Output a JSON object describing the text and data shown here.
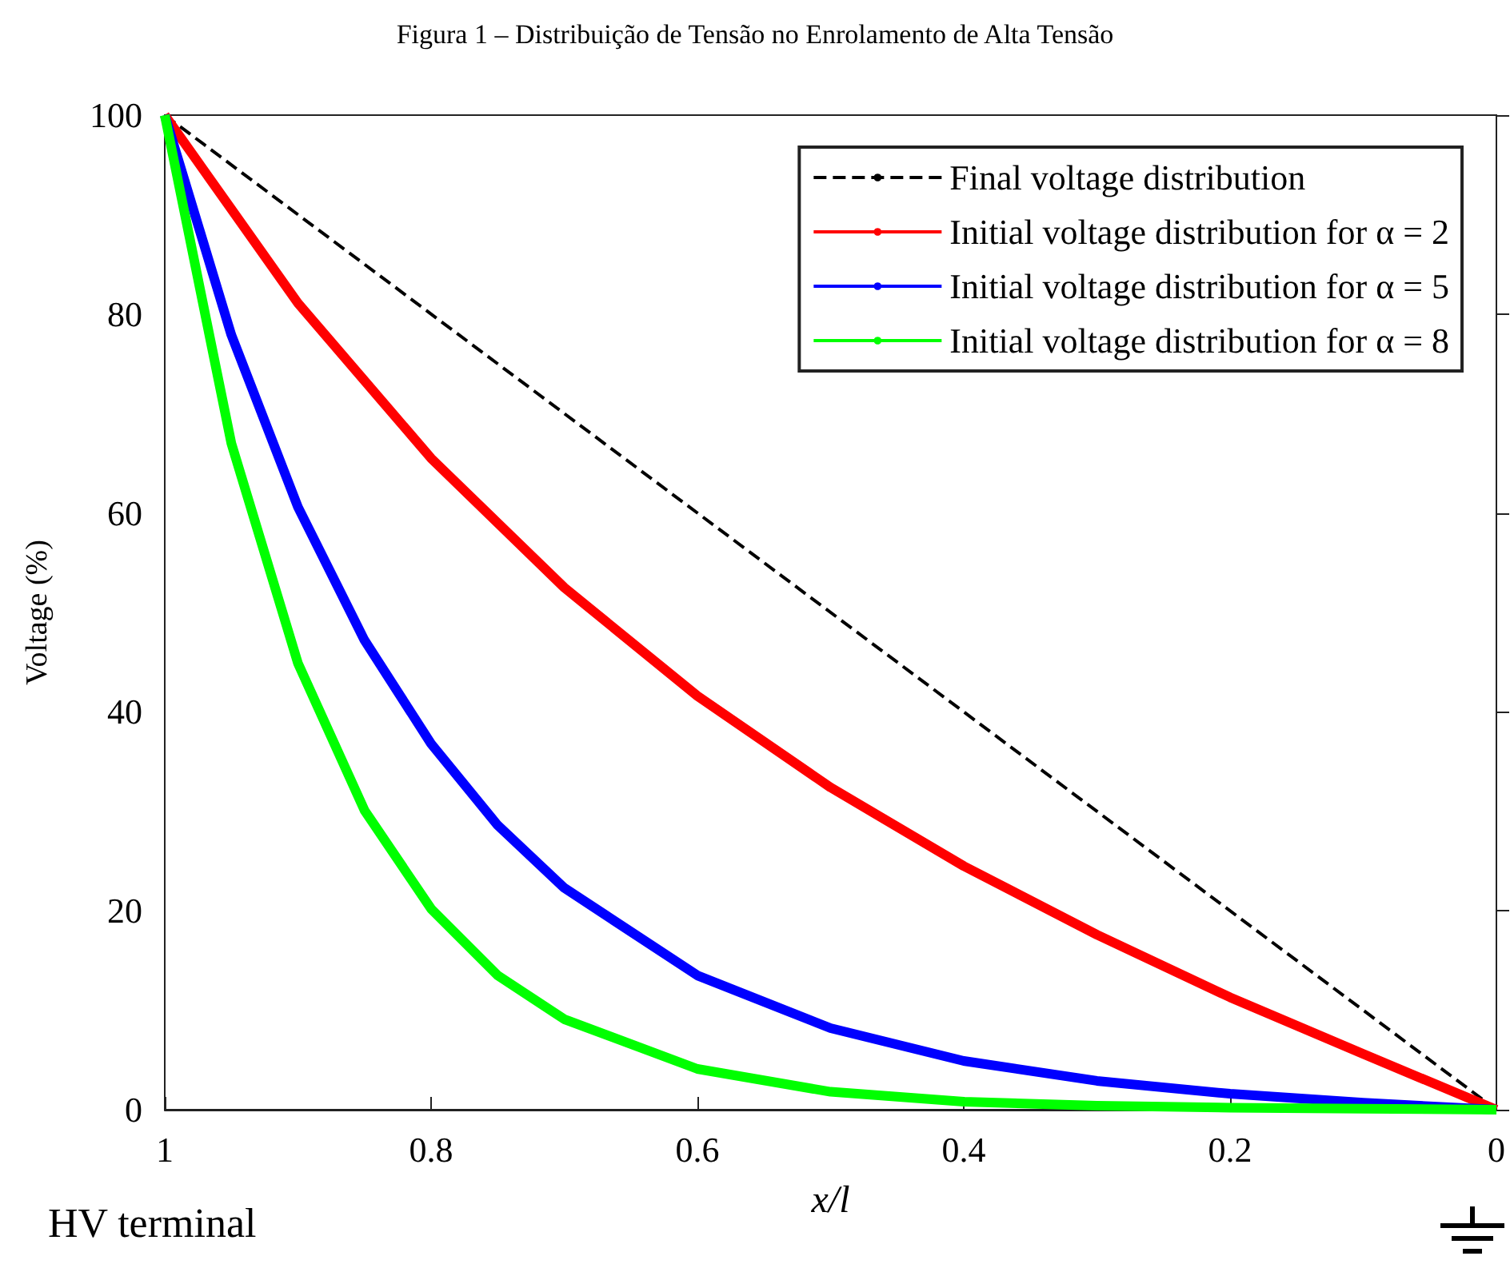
{
  "chart_data": {
    "type": "line",
    "title": "Figura 1 – Distribuição de Tensão no Enrolamento de Alta Tensão",
    "xlabel": "x/l",
    "ylabel": "Voltage (%)",
    "annotations": [
      "HV terminal"
    ],
    "xlim": [
      1,
      0
    ],
    "xticks": [
      1,
      0.8,
      0.6,
      0.4,
      0.2,
      0
    ],
    "ylim": [
      0,
      100
    ],
    "yticks": [
      0,
      20,
      40,
      60,
      80,
      100
    ],
    "grid": false,
    "legend": "top right",
    "marker": "none",
    "series": [
      {
        "name": "Final voltage distribution",
        "color": "#000000",
        "line_style": "dashed",
        "x": [
          1,
          0
        ],
        "values": [
          100,
          0
        ]
      },
      {
        "name": "Initial voltage distribution for α = 2",
        "color": "#ff0000",
        "line_style": "solid",
        "x": [
          1,
          0.9,
          0.8,
          0.7,
          0.6,
          0.5,
          0.4,
          0.3,
          0.2,
          0.1,
          0
        ],
        "values": [
          100,
          81.1,
          65.5,
          52.5,
          41.6,
          32.4,
          24.5,
          17.6,
          11.3,
          5.6,
          0
        ]
      },
      {
        "name": "Initial voltage distribution for α = 5",
        "color": "#0000ff",
        "line_style": "solid",
        "x": [
          1,
          0.95,
          0.9,
          0.85,
          0.8,
          0.75,
          0.7,
          0.6,
          0.5,
          0.4,
          0.3,
          0.2,
          0.1,
          0
        ],
        "values": [
          100,
          77.9,
          60.6,
          47.2,
          36.8,
          28.6,
          22.3,
          13.5,
          8.2,
          4.9,
          2.9,
          1.6,
          0.7,
          0
        ]
      },
      {
        "name": "Initial voltage distribution for α = 8",
        "color": "#00ff00",
        "line_style": "solid",
        "x": [
          1,
          0.95,
          0.9,
          0.85,
          0.8,
          0.75,
          0.7,
          0.6,
          0.5,
          0.4,
          0.3,
          0.2,
          0.1,
          0
        ],
        "values": [
          100,
          67.0,
          44.9,
          30.1,
          20.2,
          13.5,
          9.1,
          4.1,
          1.8,
          0.8,
          0.4,
          0.2,
          0.1,
          0
        ]
      }
    ]
  }
}
